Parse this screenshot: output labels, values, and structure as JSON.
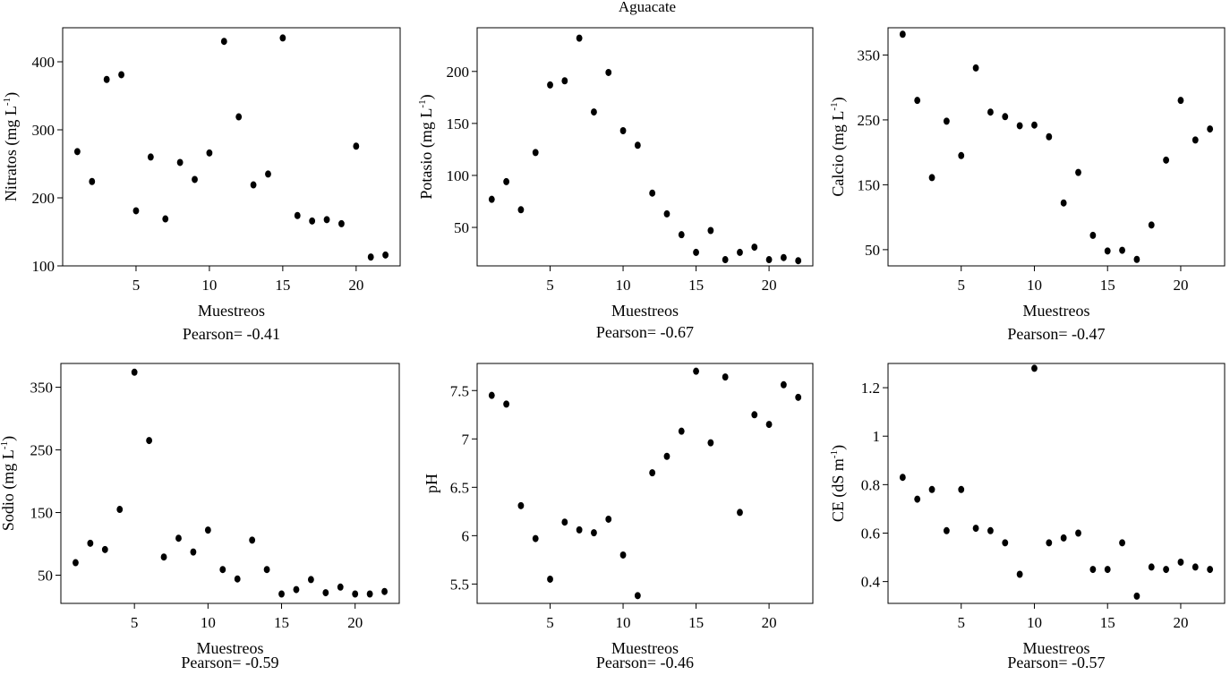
{
  "page": {
    "title": "Aguacate"
  },
  "chart_data": [
    {
      "type": "scatter",
      "x": [
        1,
        2,
        3,
        4,
        5,
        6,
        7,
        8,
        9,
        10,
        11,
        12,
        13,
        14,
        15,
        16,
        17,
        18,
        19,
        20,
        21,
        22
      ],
      "values": [
        268,
        224,
        374,
        381,
        181,
        260,
        169,
        252,
        227,
        266,
        430,
        319,
        219,
        235,
        435,
        174,
        166,
        168,
        162,
        276,
        113,
        116
      ],
      "xlabel": "Muestreos",
      "ylabel_main": "Nitratos (mg L",
      "ylabel_sup": "-1",
      "ylabel_tail": ")",
      "pearson": "Pearson= -0.41",
      "xticks": [
        "5",
        "10",
        "15",
        "20"
      ],
      "yticks": [
        "100",
        "200",
        "300",
        "400"
      ],
      "xlim": [
        0,
        23
      ],
      "ylim": [
        100,
        450
      ]
    },
    {
      "type": "scatter",
      "x": [
        1,
        2,
        3,
        4,
        5,
        6,
        7,
        8,
        9,
        10,
        11,
        12,
        13,
        14,
        15,
        16,
        17,
        18,
        19,
        20,
        21,
        22
      ],
      "values": [
        77,
        94,
        67,
        122,
        187,
        191,
        232,
        161,
        199,
        143,
        129,
        83,
        63,
        43,
        26,
        47,
        19,
        26,
        31,
        19,
        21,
        18
      ],
      "xlabel": "Muestreos",
      "ylabel_main": "Potasio (mg L",
      "ylabel_sup": "-1",
      "ylabel_tail": ")",
      "pearson": "Pearson= -0.67",
      "xticks": [
        "5",
        "10",
        "15",
        "20"
      ],
      "yticks": [
        "50",
        "100",
        "150",
        "200"
      ],
      "xlim": [
        0,
        23
      ],
      "ylim": [
        13,
        242
      ]
    },
    {
      "type": "scatter",
      "x": [
        1,
        2,
        3,
        4,
        5,
        6,
        7,
        8,
        9,
        10,
        11,
        12,
        13,
        14,
        15,
        16,
        17,
        18,
        19,
        20,
        21,
        22
      ],
      "values": [
        382,
        280,
        161,
        248,
        195,
        330,
        262,
        255,
        241,
        242,
        224,
        122,
        169,
        72,
        48,
        49,
        35,
        88,
        188,
        280,
        219,
        236
      ],
      "xlabel": "Muestreos",
      "ylabel_main": "Calcio (mg L",
      "ylabel_sup": "-1",
      "ylabel_tail": ")",
      "pearson": "Pearson= -0.47",
      "xticks": [
        "5",
        "10",
        "15",
        "20"
      ],
      "yticks": [
        "50",
        "150",
        "250",
        "350"
      ],
      "xlim": [
        0,
        23
      ],
      "ylim": [
        25,
        392
      ]
    },
    {
      "type": "scatter",
      "x": [
        1,
        2,
        3,
        4,
        5,
        6,
        7,
        8,
        9,
        10,
        11,
        12,
        13,
        14,
        15,
        16,
        17,
        18,
        19,
        20,
        21,
        22
      ],
      "values": [
        70,
        101,
        91,
        155,
        374,
        265,
        79,
        109,
        87,
        122,
        59,
        44,
        106,
        59,
        20,
        27,
        43,
        22,
        31,
        20,
        20,
        24
      ],
      "xlabel": "Muestreos",
      "ylabel_main": "Sodio (mg L",
      "ylabel_sup": "-1",
      "ylabel_tail": ")",
      "pearson": "Pearson= -0.59",
      "xticks": [
        "5",
        "10",
        "15",
        "20"
      ],
      "yticks": [
        "50",
        "150",
        "250",
        "350"
      ],
      "xlim": [
        0,
        23
      ],
      "ylim": [
        5,
        388
      ]
    },
    {
      "type": "scatter",
      "x": [
        1,
        2,
        3,
        4,
        5,
        6,
        7,
        8,
        9,
        10,
        11,
        12,
        13,
        14,
        15,
        16,
        17,
        18,
        19,
        20,
        21,
        22
      ],
      "values": [
        7.45,
        7.36,
        6.31,
        5.97,
        5.55,
        6.14,
        6.06,
        6.03,
        6.17,
        5.8,
        5.38,
        6.65,
        6.82,
        7.08,
        7.7,
        6.96,
        7.64,
        6.24,
        7.25,
        7.15,
        7.56,
        7.43
      ],
      "xlabel": "Muestreos",
      "ylabel_main": "pH",
      "ylabel_sup": "",
      "ylabel_tail": "",
      "pearson": "Pearson= -0.46",
      "xticks": [
        "5",
        "10",
        "15",
        "20"
      ],
      "yticks": [
        "5.5",
        "6",
        "6.5",
        "7",
        "7.5"
      ],
      "xlim": [
        0,
        23
      ],
      "ylim": [
        5.3,
        7.78
      ]
    },
    {
      "type": "scatter",
      "x": [
        1,
        2,
        3,
        4,
        5,
        6,
        7,
        8,
        9,
        10,
        11,
        12,
        13,
        14,
        15,
        16,
        17,
        18,
        19,
        20,
        21,
        22
      ],
      "values": [
        0.83,
        0.74,
        0.78,
        0.61,
        0.78,
        0.62,
        0.61,
        0.56,
        0.43,
        1.28,
        0.56,
        0.58,
        0.6,
        0.45,
        0.45,
        0.56,
        0.34,
        0.46,
        0.45,
        0.48,
        0.46,
        0.45
      ],
      "xlabel": "Muestreos",
      "ylabel_main": "CE (dS m",
      "ylabel_sup": "-1",
      "ylabel_tail": ")",
      "pearson": "Pearson= -0.57",
      "xticks": [
        "5",
        "10",
        "15",
        "20"
      ],
      "yticks": [
        "0.4",
        "0.6",
        "0.8",
        "1",
        "1.2"
      ],
      "xlim": [
        0,
        23
      ],
      "ylim": [
        0.31,
        1.3
      ]
    }
  ]
}
